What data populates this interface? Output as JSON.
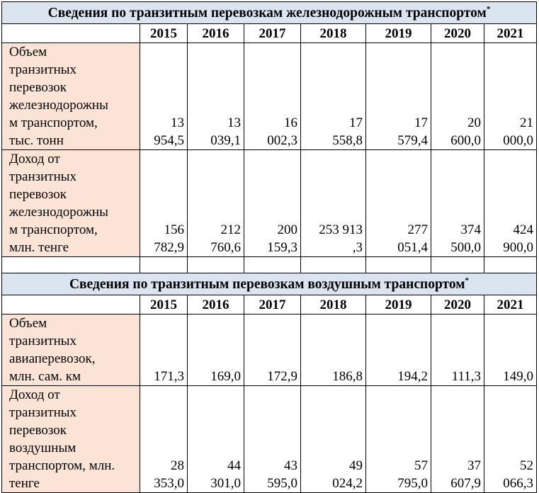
{
  "rail": {
    "title": "Сведения по транзитным перевозкам железнодорожным транспортом",
    "title_mark": "*",
    "years": [
      "2015",
      "2016",
      "2017",
      "2018",
      "2019",
      "2020",
      "2021"
    ],
    "rows": [
      {
        "label": "Объем\nтранзитных\nперевозок\nжелезнодорожны\nм транспортом,\nтыс. тонн",
        "values": [
          "13\n954,5",
          "13\n039,1",
          "16\n002,3",
          "17\n558,8",
          "17\n579,4",
          "20\n600,0",
          "21\n000,0"
        ]
      },
      {
        "label": "Доход от\nтранзитных\nперевозок\nжелезнодорожны\nм транспортом,\nмлн. тенге",
        "values": [
          "156\n782,9",
          "212\n760,6",
          "200\n159,3",
          "253 913\n,3",
          "277\n051,4",
          "374\n500,0",
          "424\n900,0"
        ]
      }
    ]
  },
  "air": {
    "title": "Сведения по транзитным перевозкам воздушным транспортом",
    "title_mark": "*",
    "years": [
      "2015",
      "2016",
      "2017",
      "2018",
      "2019",
      "2020",
      "2021"
    ],
    "rows": [
      {
        "label": "Объем\nтранзитных\nавиаперевозок,\nмлн. сам. км",
        "values": [
          "171,3",
          "169,0",
          "172,9",
          "186,8",
          "194,2",
          "111,3",
          "149,0"
        ]
      },
      {
        "label": "Доход от\nтранзитных\nперевозок\nвоздушным\nтранспортом, млн.\nтенге",
        "values": [
          "28\n353,0",
          "44\n301,0",
          "43\n595,0",
          "49\n024,2",
          "57\n795,0",
          "37\n607,9",
          "52\n066,3"
        ]
      }
    ]
  }
}
